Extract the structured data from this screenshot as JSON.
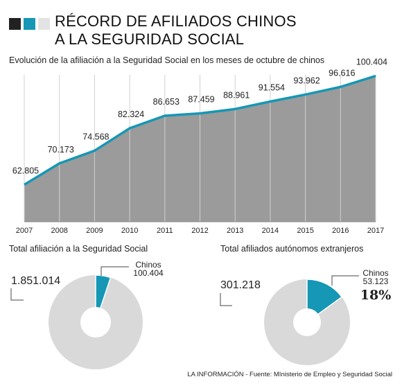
{
  "header": {
    "title_line1": "RÉCORD DE AFILIADOS CHINOS",
    "title_line2": "A LA SEGURIDAD SOCIAL",
    "squares": [
      "#222222",
      "#1597b5",
      "#e3e3e3"
    ]
  },
  "colors": {
    "area": "#9b9b9b",
    "line": "#1597b5",
    "pie_rest": "#d9d9d9",
    "pie_highlight": "#1597b5"
  },
  "chart_data": [
    {
      "type": "area",
      "title": "Evolución de la afiliación a la Seguridad Social en los meses de octubre de chinos",
      "categories": [
        "2007",
        "2008",
        "2009",
        "2010",
        "2011",
        "2012",
        "2013",
        "2014",
        "2015",
        "2016",
        "2017"
      ],
      "values": [
        62805,
        70173,
        74568,
        82324,
        86653,
        87459,
        88961,
        91554,
        93962,
        96616,
        100404
      ],
      "labels": [
        "62.805",
        "70.173",
        "74.568",
        "82.324",
        "86.653",
        "87.459",
        "88.961",
        "91.554",
        "93.962",
        "96.616",
        "100.404"
      ],
      "ylim": [
        50000,
        101500
      ],
      "grid": "vertical"
    },
    {
      "type": "pie",
      "title": "Total afiliación a la Seguridad Social",
      "slices": [
        {
          "name": "Chinos",
          "value": 100404,
          "label": "100.404"
        },
        {
          "name": "",
          "value": 1851014,
          "label": "1.851.014"
        }
      ]
    },
    {
      "type": "pie",
      "title": "Total afiliados autónomos extranjeros",
      "slices": [
        {
          "name": "Chinos",
          "value": 53123,
          "label": "53.123",
          "percent": "18%"
        },
        {
          "name": "",
          "value": 301218,
          "label": "301.218"
        }
      ]
    }
  ],
  "source": "LA INFORMACIÓN - Fuente: MInisterio de Empleo y Seguridad Social"
}
